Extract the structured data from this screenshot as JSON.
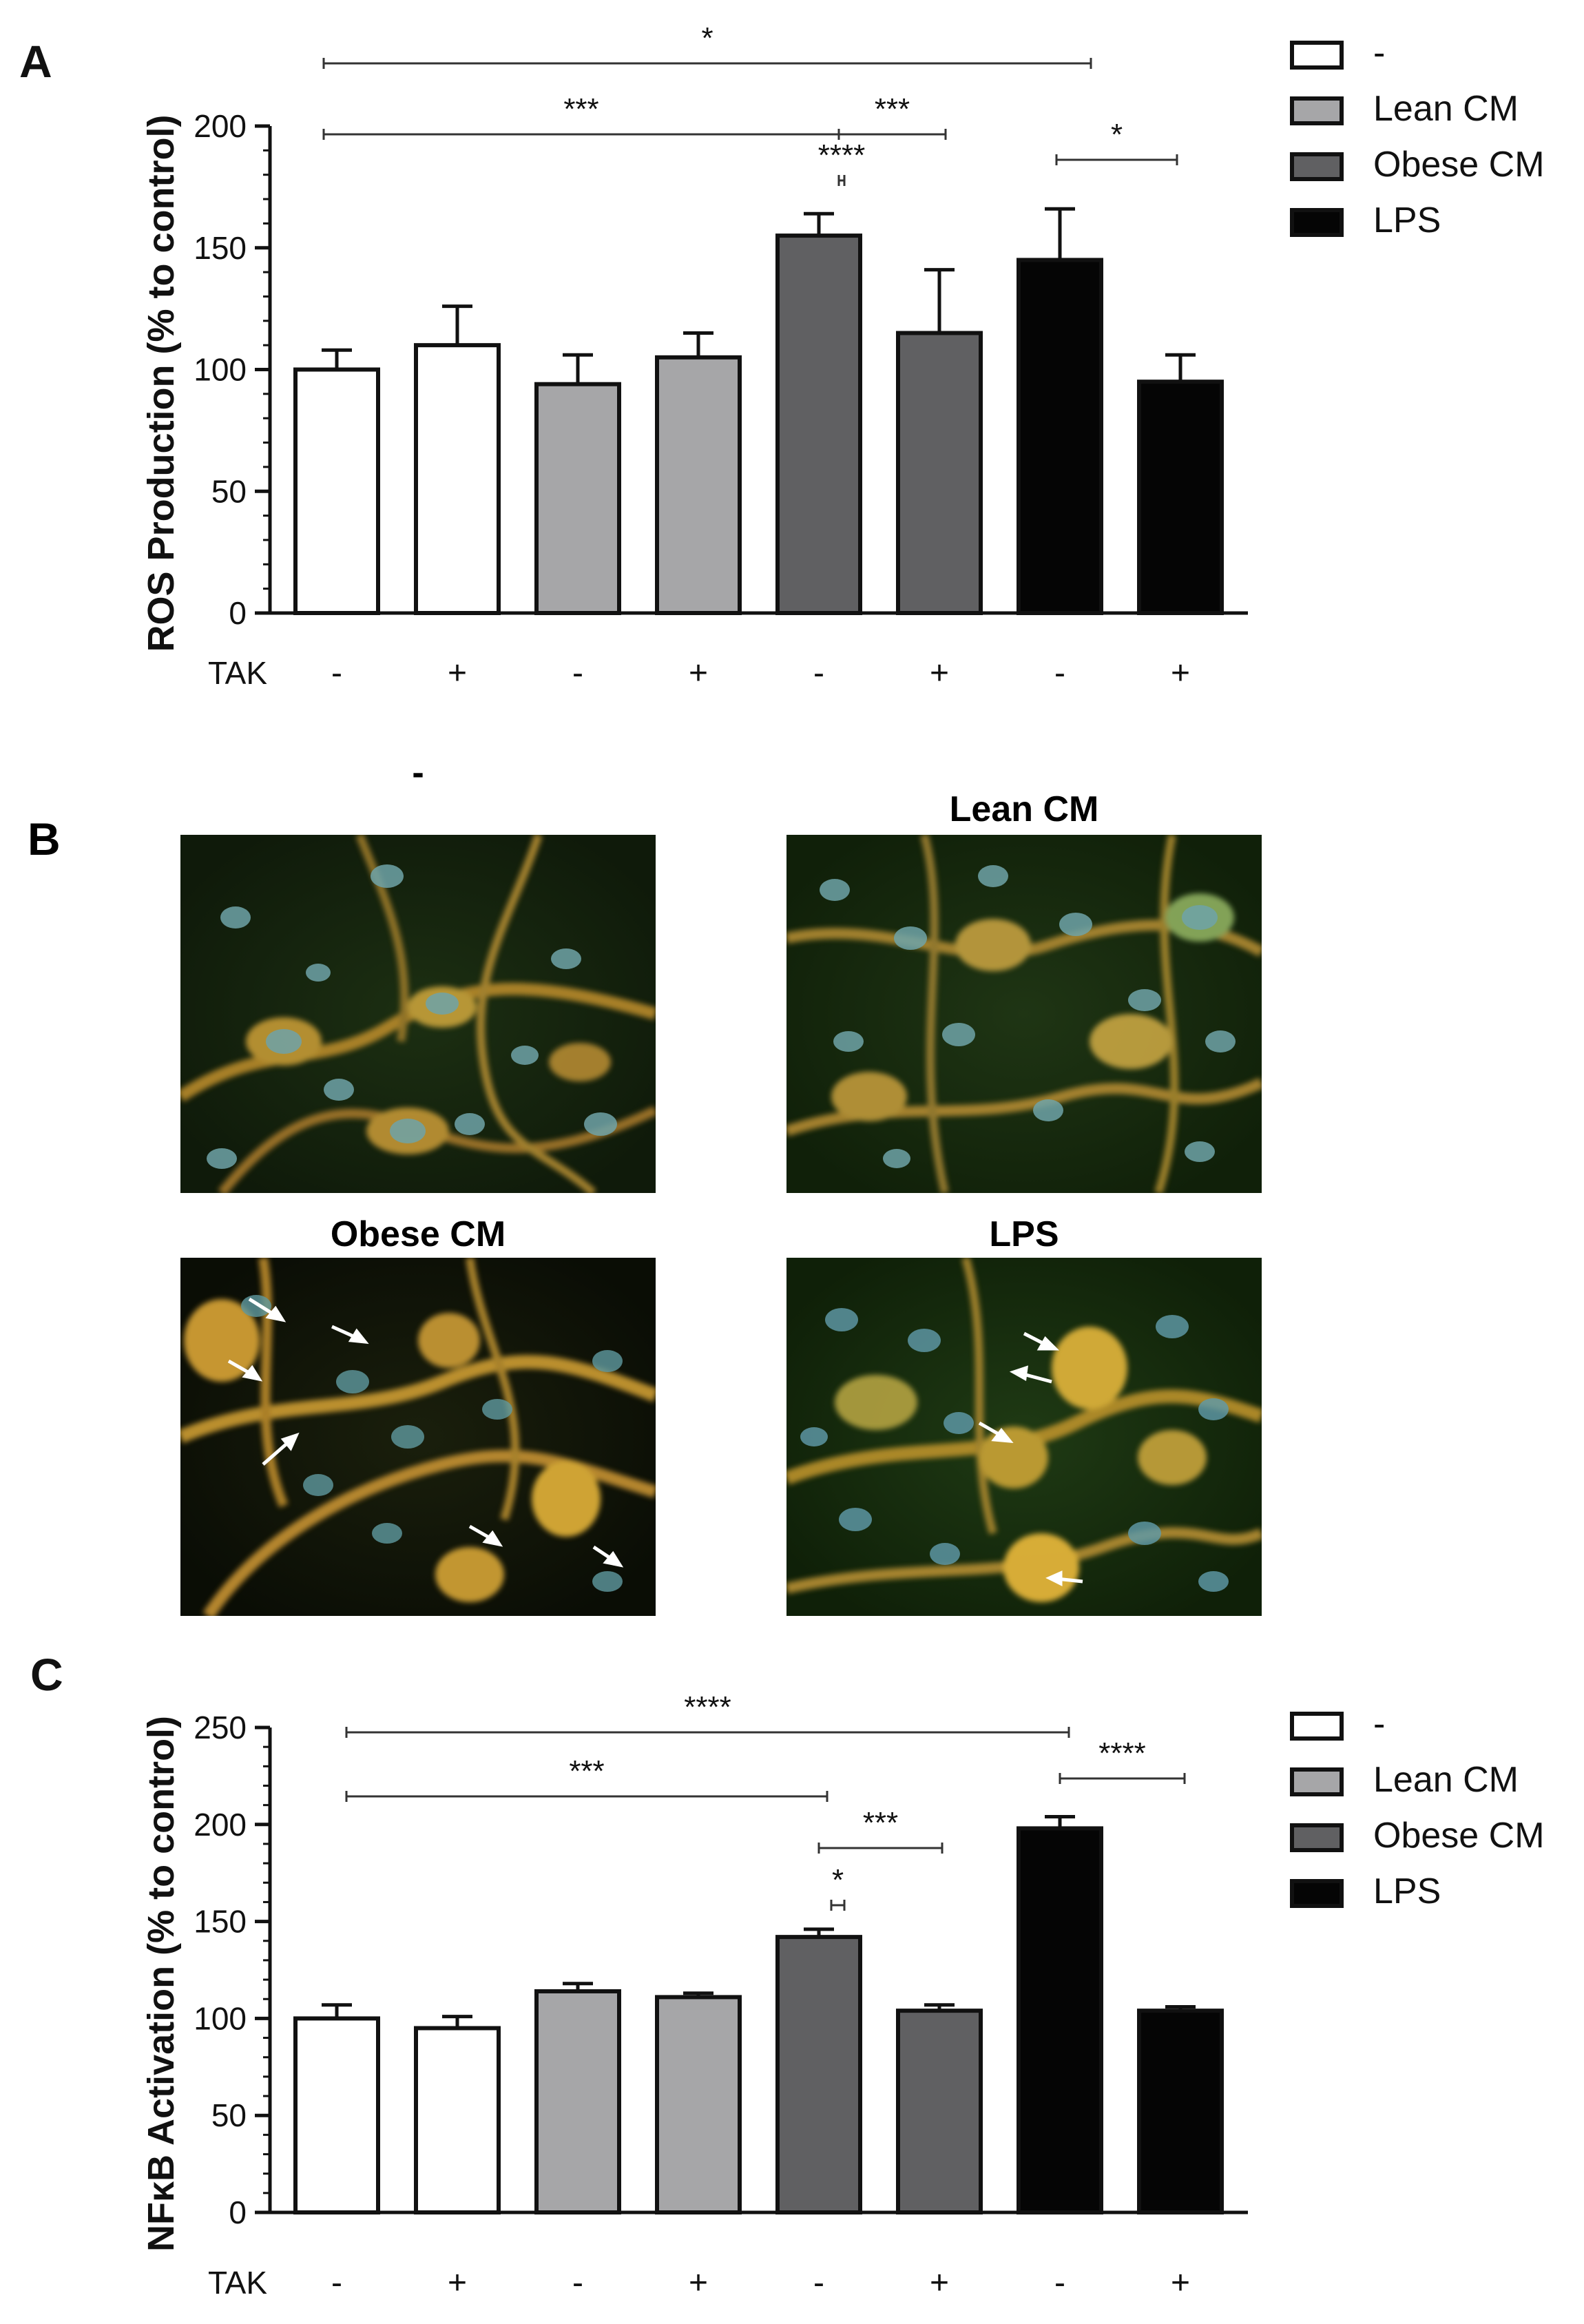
{
  "legend": [
    {
      "label": "-",
      "color": "#ffffff"
    },
    {
      "label": "Lean CM",
      "color": "#a6a6a8"
    },
    {
      "label": "Obese CM",
      "color": "#606062"
    },
    {
      "label": "LPS",
      "color": "#050505"
    }
  ],
  "chart_data": [
    {
      "type": "bar",
      "panel": "A",
      "ylabel": "ROS Production (% to control)",
      "xlabel": "",
      "ylim": [
        0,
        200
      ],
      "yticks": [
        0,
        50,
        100,
        150,
        200
      ],
      "treatment_label": "TAK",
      "tak": [
        "-",
        "+",
        "-",
        "+",
        "-",
        "+",
        "-",
        "+"
      ],
      "groups": [
        "-",
        "-",
        "Lean CM",
        "Lean CM",
        "Obese CM",
        "Obese CM",
        "LPS",
        "LPS"
      ],
      "values": [
        100,
        110,
        94,
        105,
        155,
        115,
        145,
        95
      ],
      "errors": [
        8,
        16,
        12,
        10,
        9,
        26,
        21,
        11
      ],
      "significance": [
        {
          "from": 0,
          "to": 6,
          "label": "*"
        },
        {
          "from": 0,
          "to": 4,
          "label": "***"
        },
        {
          "from": 4,
          "to": 5,
          "label": "***"
        },
        {
          "from": 2,
          "to": 4,
          "label": "****"
        },
        {
          "from": 6,
          "to": 7,
          "label": "*"
        }
      ]
    },
    {
      "type": "bar",
      "panel": "C",
      "ylabel": "NFκB Activation (% to control)",
      "xlabel": "",
      "ylim": [
        0,
        250
      ],
      "yticks": [
        0,
        50,
        100,
        150,
        200,
        250
      ],
      "treatment_label": "TAK",
      "tak": [
        "-",
        "+",
        "-",
        "+",
        "-",
        "+",
        "-",
        "+"
      ],
      "groups": [
        "-",
        "-",
        "Lean CM",
        "Lean CM",
        "Obese CM",
        "Obese CM",
        "LPS",
        "LPS"
      ],
      "values": [
        100,
        95,
        114,
        111,
        142,
        104,
        198,
        104
      ],
      "errors": [
        7,
        6,
        4,
        2,
        4,
        3,
        6,
        2
      ],
      "significance": [
        {
          "from": 0,
          "to": 6,
          "label": "****"
        },
        {
          "from": 0,
          "to": 4,
          "label": "***"
        },
        {
          "from": 4,
          "to": 5,
          "label": "***"
        },
        {
          "from": 2,
          "to": 4,
          "label": "*"
        },
        {
          "from": 6,
          "to": 7,
          "label": "****"
        }
      ]
    }
  ],
  "panels": {
    "a": "A",
    "b": "B",
    "c": "C"
  },
  "micrographs": [
    {
      "title": "-"
    },
    {
      "title": "Lean CM"
    },
    {
      "title": "Obese CM"
    },
    {
      "title": "LPS"
    }
  ]
}
